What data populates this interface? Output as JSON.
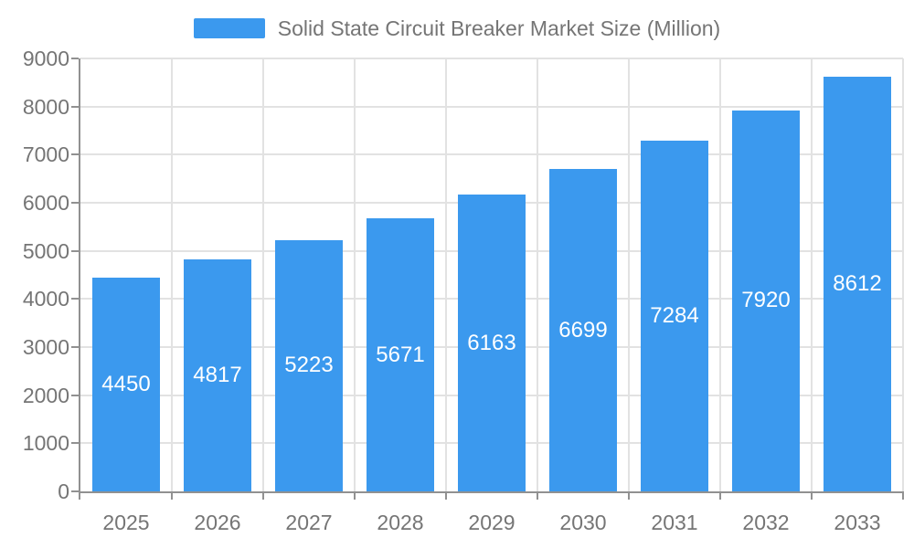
{
  "legend": {
    "label": "Solid State Circuit Breaker Market Size (Million)"
  },
  "chart_data": {
    "type": "bar",
    "title": "Solid State Circuit Breaker Market Size (Million)",
    "categories": [
      "2025",
      "2026",
      "2027",
      "2028",
      "2029",
      "2030",
      "2031",
      "2032",
      "2033"
    ],
    "series": [
      {
        "name": "Solid State Circuit Breaker Market Size (Million)",
        "values": [
          4450,
          4817,
          5223,
          5671,
          6163,
          6699,
          7284,
          7920,
          8612
        ]
      }
    ],
    "values": [
      4450,
      4817,
      5223,
      5671,
      6163,
      6699,
      7284,
      7920,
      8612
    ],
    "bar_labels": [
      "4450",
      "4817",
      "5223",
      "5671",
      "6163",
      "6699",
      "7284",
      "7920",
      "8612"
    ],
    "y_ticks": [
      0,
      1000,
      2000,
      3000,
      4000,
      5000,
      6000,
      7000,
      8000,
      9000
    ],
    "ylim": [
      0,
      9000
    ],
    "xlabel": "",
    "ylabel": "",
    "grid": true,
    "legend_position": "top-center",
    "bar_labels_visible": true,
    "colors": {
      "bar": "#3b99ee",
      "bar_label": "#ffffff",
      "axis_text": "#757575",
      "axis_line": "#919191",
      "gridline": "#e2e2e2",
      "background": "#ffffff"
    }
  }
}
